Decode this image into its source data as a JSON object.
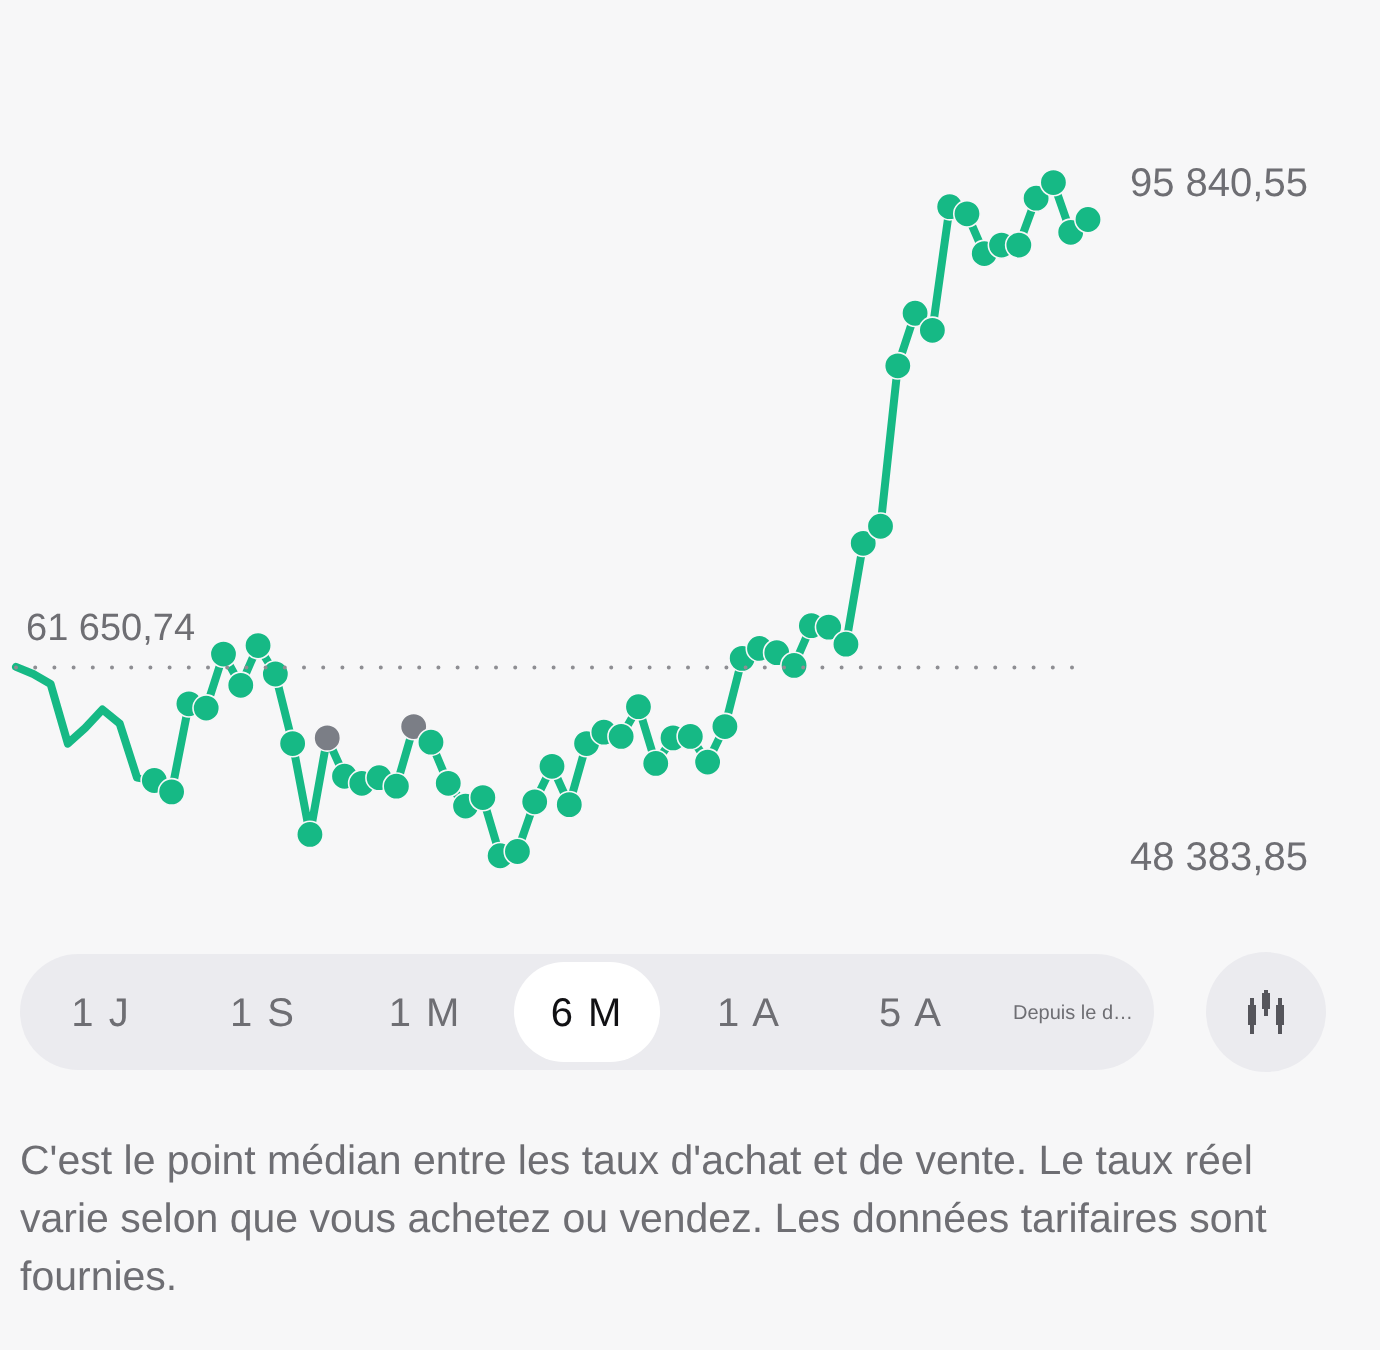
{
  "chart_data": {
    "type": "line",
    "tick_labels": "y",
    "categories": [
      null,
      null,
      null,
      null,
      null,
      null,
      null,
      null,
      null,
      null,
      null,
      null,
      null,
      null,
      null,
      null,
      null,
      null,
      null,
      null,
      null,
      null,
      null,
      null,
      null,
      null,
      null,
      null,
      null,
      null,
      null,
      null,
      null,
      null,
      null,
      null,
      null,
      null,
      null,
      null,
      null,
      null,
      null,
      null,
      null,
      null,
      null,
      null,
      null,
      null,
      null,
      null,
      null,
      null,
      null,
      null,
      null,
      null,
      null,
      null,
      null,
      null,
      null
    ],
    "series": [
      {
        "color": "#16b985",
        "marker": "none",
        "values": [
          61700,
          61200,
          60500,
          56300,
          57400,
          58700,
          57700,
          53900,
          53700,
          null,
          null,
          null,
          null,
          null,
          null,
          null,
          null,
          null,
          null,
          null,
          null,
          null,
          null,
          null,
          null,
          null,
          null,
          null,
          null,
          null,
          null,
          null,
          null,
          null,
          null,
          null,
          null,
          null,
          null,
          null,
          null,
          null,
          null,
          null,
          null,
          null,
          null,
          null,
          null,
          null,
          null,
          null,
          null,
          null,
          null,
          null,
          null,
          null,
          null,
          null,
          null,
          null,
          null
        ]
      },
      {
        "color": "#16b985",
        "marker": "circle",
        "values": [
          null,
          null,
          null,
          null,
          null,
          null,
          null,
          null,
          53700,
          52900,
          59100,
          58800,
          62600,
          60400,
          63200,
          61200,
          56300,
          49900,
          56700,
          54000,
          53500,
          53900,
          53300,
          57500,
          56400,
          53500,
          51900,
          52500,
          48400,
          48700,
          52200,
          54700,
          52000,
          56300,
          57100,
          56800,
          58900,
          54900,
          56700,
          56800,
          55000,
          57500,
          62300,
          63000,
          62700,
          61800,
          64600,
          64500,
          63300,
          70400,
          71600,
          82900,
          86600,
          85400,
          94100,
          93600,
          90800,
          91400,
          91400,
          94700,
          95800,
          92300,
          93200
        ],
        "colors": [
          null,
          null,
          null,
          null,
          null,
          null,
          null,
          null,
          "#16b985",
          "#16b985",
          "#16b985",
          "#16b985",
          "#16b985",
          "#16b985",
          "#16b985",
          "#16b985",
          "#16b985",
          "#16b985",
          "#7b7e86",
          "#16b985",
          "#16b985",
          "#16b985",
          "#16b985",
          "#7b7e86",
          "#16b985",
          "#16b985",
          "#16b985",
          "#16b985",
          "#16b985",
          "#16b985",
          "#16b985",
          "#16b985",
          "#16b985",
          "#16b985",
          "#16b985",
          "#16b985",
          "#16b985",
          "#16b985",
          "#16b985",
          "#16b985",
          "#16b985",
          "#16b985",
          "#16b985",
          "#16b985",
          "#16b985",
          "#16b985",
          "#16b985",
          "#16b985",
          "#16b985",
          "#16b985",
          "#16b985",
          "#16b985",
          "#16b985",
          "#16b985",
          "#16b985",
          "#16b985",
          "#16b985",
          "#16b985",
          "#16b985",
          "#16b985",
          "#16b985",
          "#16b985",
          "#16b985"
        ]
      }
    ],
    "ylim": [
      48383.85,
      95840.55
    ],
    "yticks": [
      {
        "value": 95840.55,
        "label": "95 840,55"
      },
      {
        "value": 48383.85,
        "label": "48 383,85"
      }
    ],
    "ref_lines": [
      {
        "axis": "y",
        "value": 61650.74,
        "label": "61 650,74",
        "line_style": "dotted"
      }
    ],
    "annotations": [
      "1 J",
      "1 S",
      "1 M",
      "6 M",
      "1 A",
      "5 A",
      "Depuis le d…",
      "C'est le point médian entre les taux d'achat et de vente. Le taux réel varie selon que vous achetez ou vendez. Les données tarifaires sont fournies."
    ]
  }
}
